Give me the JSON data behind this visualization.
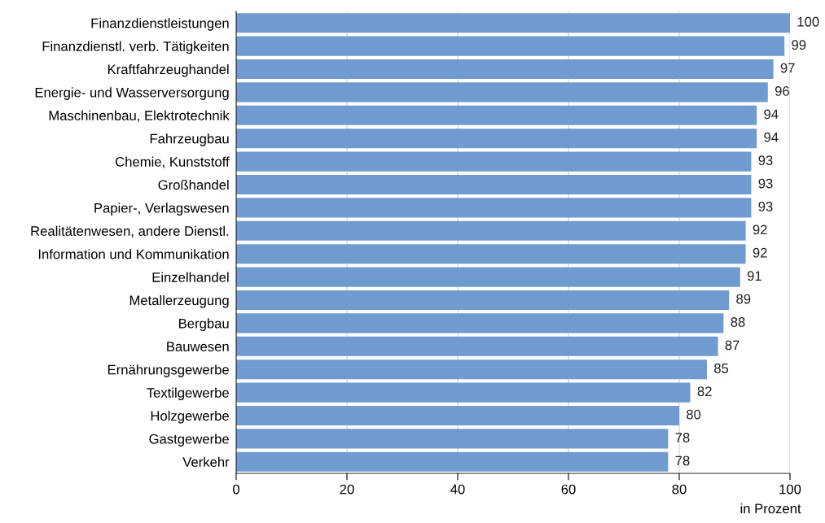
{
  "chart_data": {
    "type": "bar",
    "orientation": "horizontal",
    "xlabel": "in Prozent",
    "categories": [
      "Finanzdienstleistungen",
      "Finanzdienstl. verb. Tätigkeiten",
      "Kraftfahrzeughandel",
      "Energie- und Wasserversorgung",
      "Maschinenbau, Elektrotechnik",
      "Fahrzeugbau",
      "Chemie, Kunststoff",
      "Großhandel",
      "Papier-, Verlagswesen",
      "Realitätenwesen, andere Dienstl.",
      "Information und Kommunikation",
      "Einzelhandel",
      "Metallerzeugung",
      "Bergbau",
      "Bauwesen",
      "Ernährungsgewerbe",
      "Textilgewerbe",
      "Holzgewerbe",
      "Gastgewerbe",
      "Verkehr"
    ],
    "values": [
      100,
      99,
      97,
      96,
      94,
      94,
      93,
      93,
      93,
      92,
      92,
      91,
      89,
      88,
      87,
      85,
      82,
      80,
      78,
      78
    ],
    "color": "#6f9bd1",
    "xlim": [
      0,
      100
    ],
    "xticks": [
      0,
      20,
      40,
      60,
      80,
      100
    ],
    "grid": "x",
    "data_labels": true,
    "legend": false
  }
}
